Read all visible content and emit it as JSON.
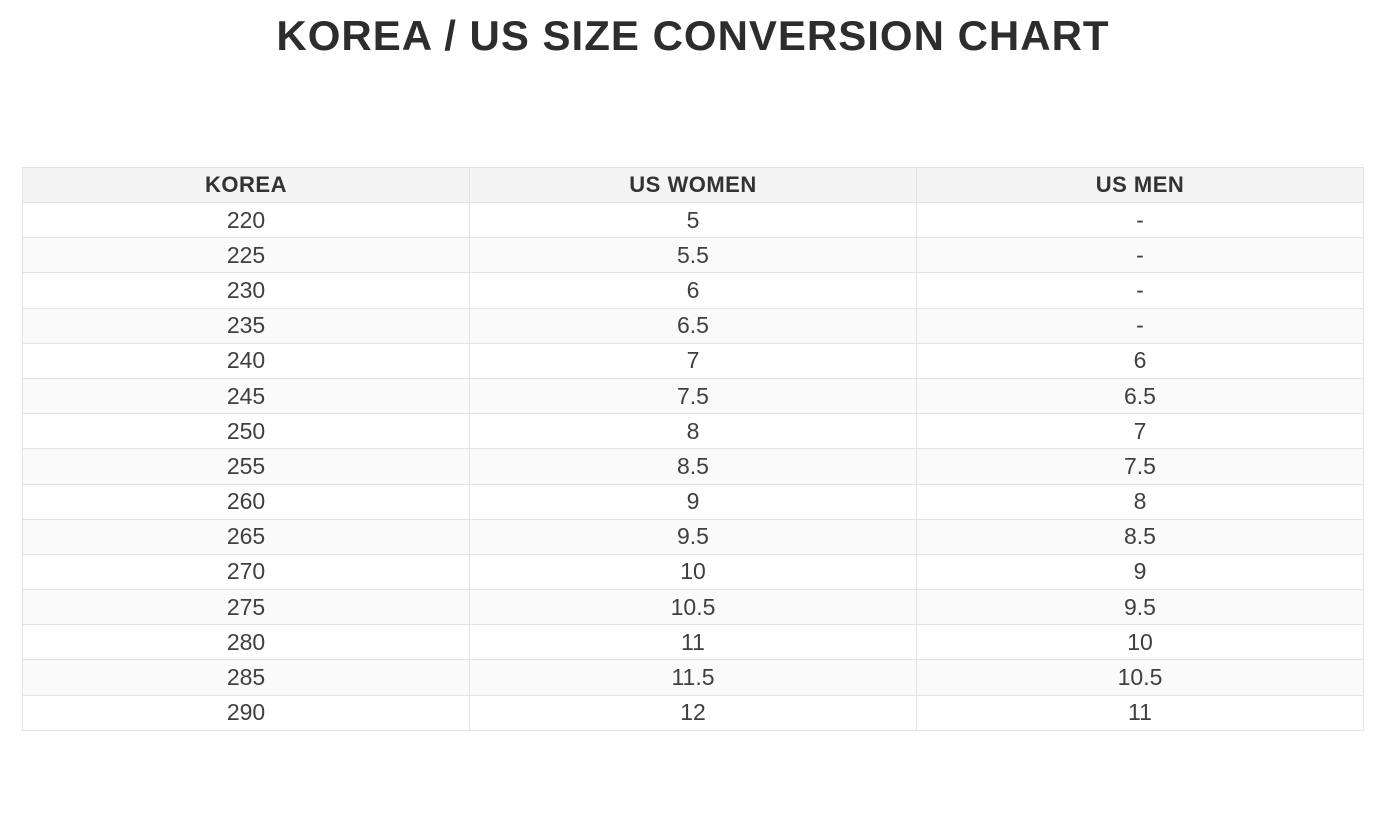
{
  "title": "KOREA / US SIZE CONVERSION CHART",
  "chart_data": {
    "type": "table",
    "title": "KOREA / US SIZE CONVERSION CHART",
    "columns": [
      "KOREA",
      "US WOMEN",
      "US MEN"
    ],
    "rows": [
      [
        "220",
        "5",
        "-"
      ],
      [
        "225",
        "5.5",
        "-"
      ],
      [
        "230",
        "6",
        "-"
      ],
      [
        "235",
        "6.5",
        "-"
      ],
      [
        "240",
        "7",
        "6"
      ],
      [
        "245",
        "7.5",
        "6.5"
      ],
      [
        "250",
        "8",
        "7"
      ],
      [
        "255",
        "8.5",
        "7.5"
      ],
      [
        "260",
        "9",
        "8"
      ],
      [
        "265",
        "9.5",
        "8.5"
      ],
      [
        "270",
        "10",
        "9"
      ],
      [
        "275",
        "10.5",
        "9.5"
      ],
      [
        "280",
        "11",
        "10"
      ],
      [
        "285",
        "11.5",
        "10.5"
      ],
      [
        "290",
        "12",
        "11"
      ]
    ],
    "layout": {
      "zebra_striping": true,
      "grid": true,
      "column_alignment": "center"
    }
  },
  "colors": {
    "page_bg": "#ffffff",
    "title_color": "#2d2d2d",
    "header_bg": "#f4f4f4",
    "header_text": "#333333",
    "cell_text": "#3f3f3f",
    "stripe_bg": "#fafafa",
    "border_color": "#e3e3e3"
  }
}
